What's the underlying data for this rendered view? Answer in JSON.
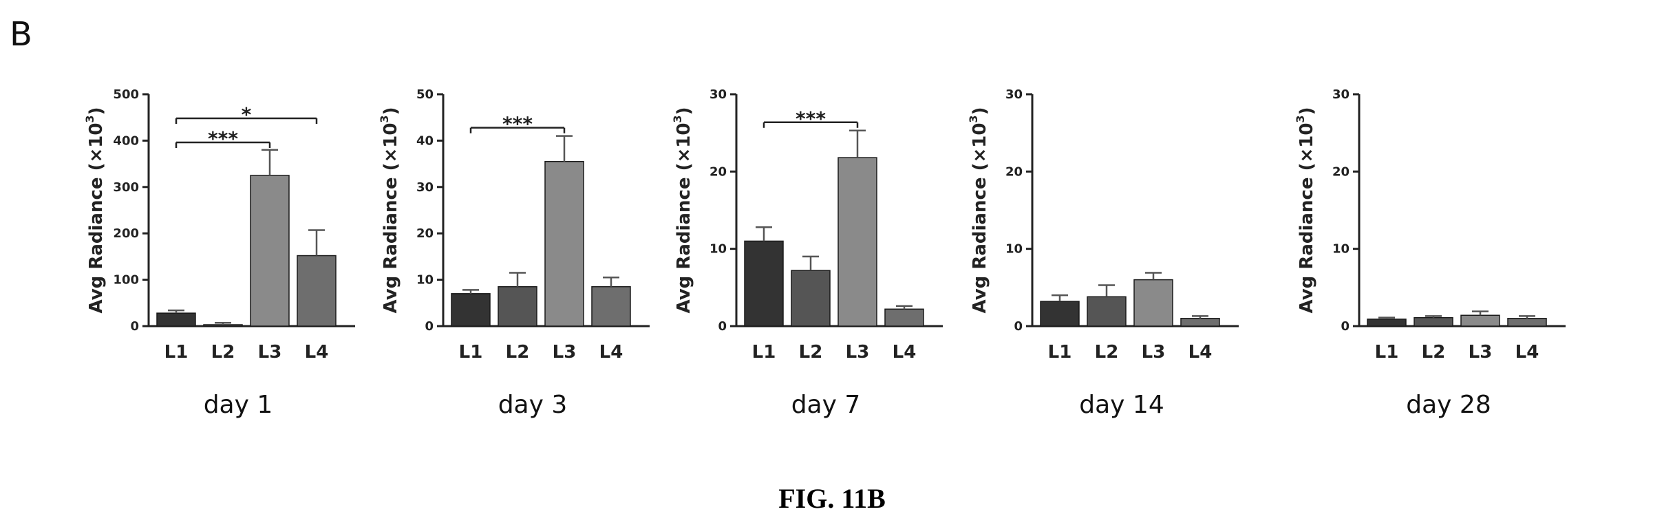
{
  "panel_label": "B",
  "figure_caption": "FIG. 11B",
  "colors": {
    "L1": "#333333",
    "L2": "#555555",
    "L3": "#8a8a8a",
    "L4": "#6e6e6e",
    "axis": "#222222"
  },
  "chart_data": [
    {
      "type": "bar",
      "title": "day 1",
      "ylabel": "Avg Radiance (×10",
      "ylabel_exponent": "3",
      "ylabel_close": ")",
      "categories": [
        "L1",
        "L2",
        "L3",
        "L4"
      ],
      "values": [
        28,
        3,
        325,
        152
      ],
      "error": [
        6,
        4,
        55,
        55
      ],
      "ylim": [
        0,
        500
      ],
      "yticks": [
        0,
        100,
        200,
        300,
        400,
        500
      ],
      "significance": [
        {
          "from": 0,
          "to": 3,
          "label": "*"
        },
        {
          "from": 0,
          "to": 2,
          "label": "***"
        }
      ]
    },
    {
      "type": "bar",
      "title": "day 3",
      "ylabel": "Avg Radiance (×10",
      "ylabel_exponent": "3",
      "ylabel_close": ")",
      "categories": [
        "L1",
        "L2",
        "L3",
        "L4"
      ],
      "values": [
        7,
        8.5,
        35.5,
        8.5
      ],
      "error": [
        0.8,
        3,
        5.5,
        2
      ],
      "ylim": [
        0,
        50
      ],
      "yticks": [
        0,
        10,
        20,
        30,
        40,
        50
      ],
      "significance": [
        {
          "from": 0,
          "to": 2,
          "label": "***"
        }
      ]
    },
    {
      "type": "bar",
      "title": "day 7",
      "ylabel": "Avg Radiance (×10",
      "ylabel_exponent": "3",
      "ylabel_close": ")",
      "categories": [
        "L1",
        "L2",
        "L3",
        "L4"
      ],
      "values": [
        11,
        7.2,
        21.8,
        2.2
      ],
      "error": [
        1.8,
        1.8,
        3.5,
        0.4
      ],
      "ylim": [
        0,
        30
      ],
      "yticks": [
        0,
        10,
        20,
        30
      ],
      "significance": [
        {
          "from": 0,
          "to": 2,
          "label": "***"
        }
      ]
    },
    {
      "type": "bar",
      "title": "day 14",
      "ylabel": "Avg Radiance (×10",
      "ylabel_exponent": "3",
      "ylabel_close": ")",
      "categories": [
        "L1",
        "L2",
        "L3",
        "L4"
      ],
      "values": [
        3.2,
        3.8,
        6.0,
        1.0
      ],
      "error": [
        0.8,
        1.5,
        0.9,
        0.3
      ],
      "ylim": [
        0,
        30
      ],
      "yticks": [
        0,
        10,
        20,
        30
      ],
      "significance": []
    },
    {
      "type": "bar",
      "title": "day 28",
      "ylabel": "Avg Radiance (×10",
      "ylabel_exponent": "3",
      "ylabel_close": ")",
      "categories": [
        "L1",
        "L2",
        "L3",
        "L4"
      ],
      "values": [
        0.9,
        1.1,
        1.4,
        1.0
      ],
      "error": [
        0.2,
        0.2,
        0.5,
        0.3
      ],
      "ylim": [
        0,
        30
      ],
      "yticks": [
        0,
        10,
        20,
        30
      ],
      "significance": []
    }
  ]
}
